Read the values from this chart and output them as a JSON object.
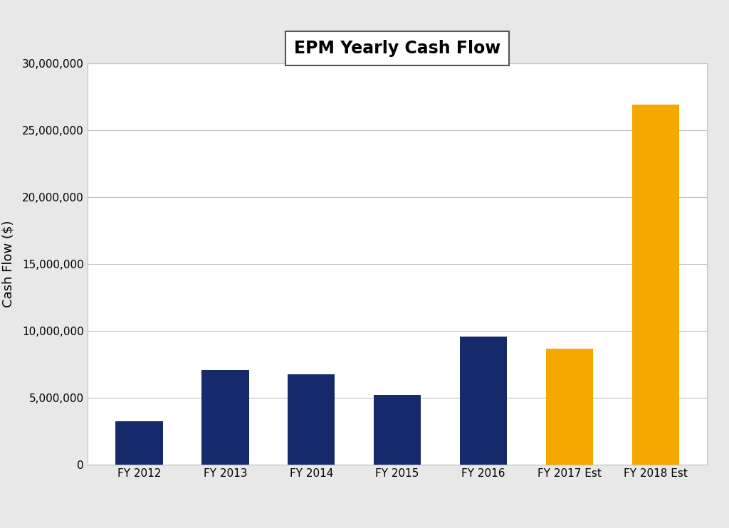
{
  "title": "EPM Yearly Cash Flow",
  "ylabel": "Cash Flow ($)",
  "categories": [
    "FY 2012",
    "FY 2013",
    "FY 2014",
    "FY 2015",
    "FY 2016",
    "FY 2017 Est",
    "FY 2018 Est"
  ],
  "values": [
    3250000,
    7050000,
    6750000,
    5200000,
    9550000,
    8650000,
    26900000
  ],
  "bar_colors": [
    "#162a6b",
    "#162a6b",
    "#162a6b",
    "#162a6b",
    "#162a6b",
    "#F5A800",
    "#F5A800"
  ],
  "ylim": [
    0,
    30000000
  ],
  "yticks": [
    0,
    5000000,
    10000000,
    15000000,
    20000000,
    25000000,
    30000000
  ],
  "background_color": "#ffffff",
  "plot_bg_color": "#ffffff",
  "grid_color": "#c0c0c0",
  "spine_color": "#c0c0c0",
  "title_fontsize": 17,
  "axis_label_fontsize": 13,
  "tick_fontsize": 11,
  "bar_width": 0.55,
  "figsize": [
    10.24,
    7.42
  ],
  "dpi": 100
}
